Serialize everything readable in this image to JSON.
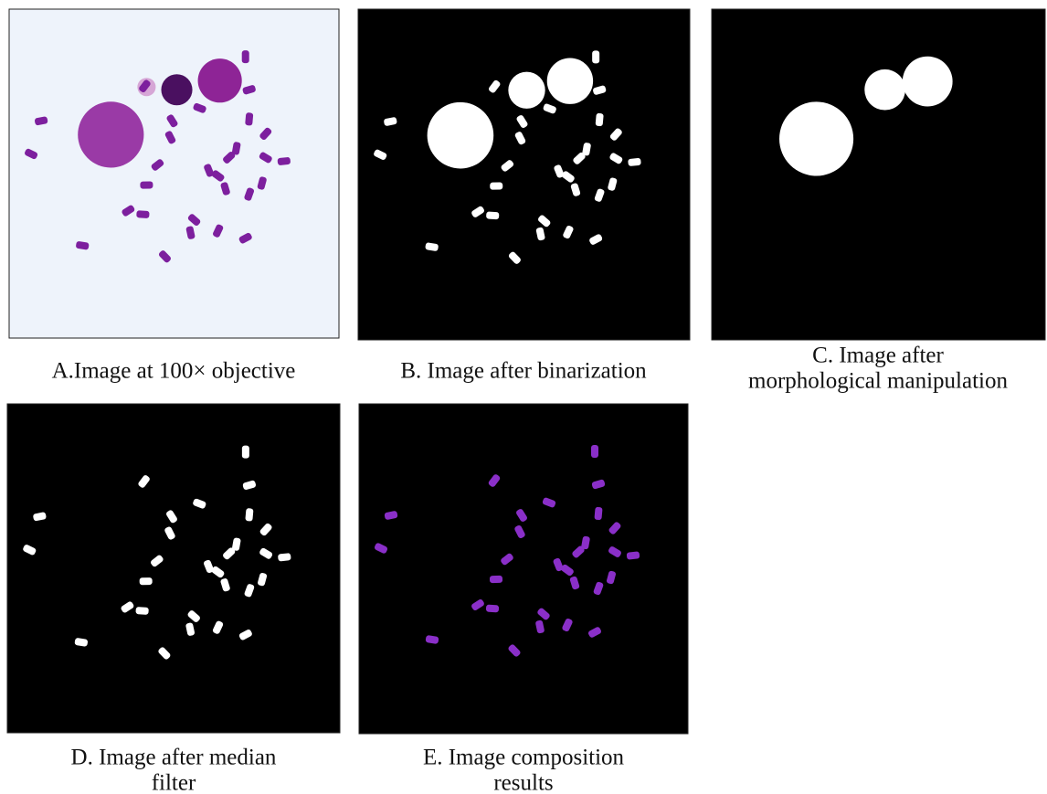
{
  "panels": [
    {
      "caption": [
        "A.Image at 100× objective"
      ]
    },
    {
      "caption": [
        "B. Image after binarization"
      ]
    },
    {
      "caption": [
        "C. Image after",
        "morphological manipulation"
      ]
    },
    {
      "caption": [
        "D. Image after median",
        "filter"
      ]
    },
    {
      "caption": [
        "E. Image composition",
        "results"
      ]
    }
  ]
}
